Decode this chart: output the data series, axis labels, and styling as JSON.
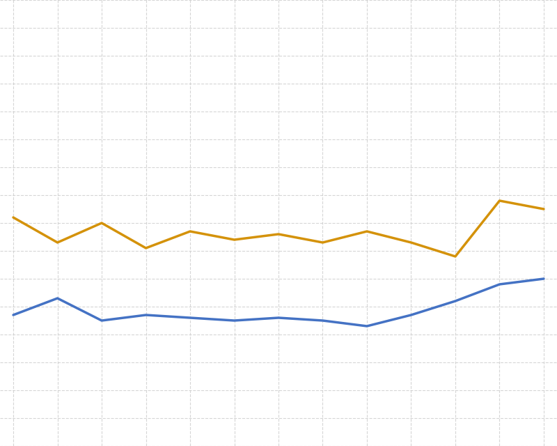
{
  "orange_y": [
    0.82,
    0.73,
    0.8,
    0.71,
    0.77,
    0.74,
    0.76,
    0.73,
    0.77,
    0.73,
    0.68,
    0.88,
    0.85
  ],
  "blue_y": [
    0.47,
    0.53,
    0.45,
    0.47,
    0.46,
    0.45,
    0.46,
    0.45,
    0.43,
    0.47,
    0.52,
    0.58,
    0.6
  ],
  "x_values": [
    0,
    1,
    2,
    3,
    4,
    5,
    6,
    7,
    8,
    9,
    10,
    11,
    12
  ],
  "orange_color": "#D4920A",
  "blue_color": "#4472C4",
  "background_color": "#FFFFFF",
  "grid_color": "#CCCCCC",
  "ylim": [
    0.0,
    1.6
  ],
  "xlim": [
    -0.3,
    12.3
  ],
  "line_width": 2.5
}
